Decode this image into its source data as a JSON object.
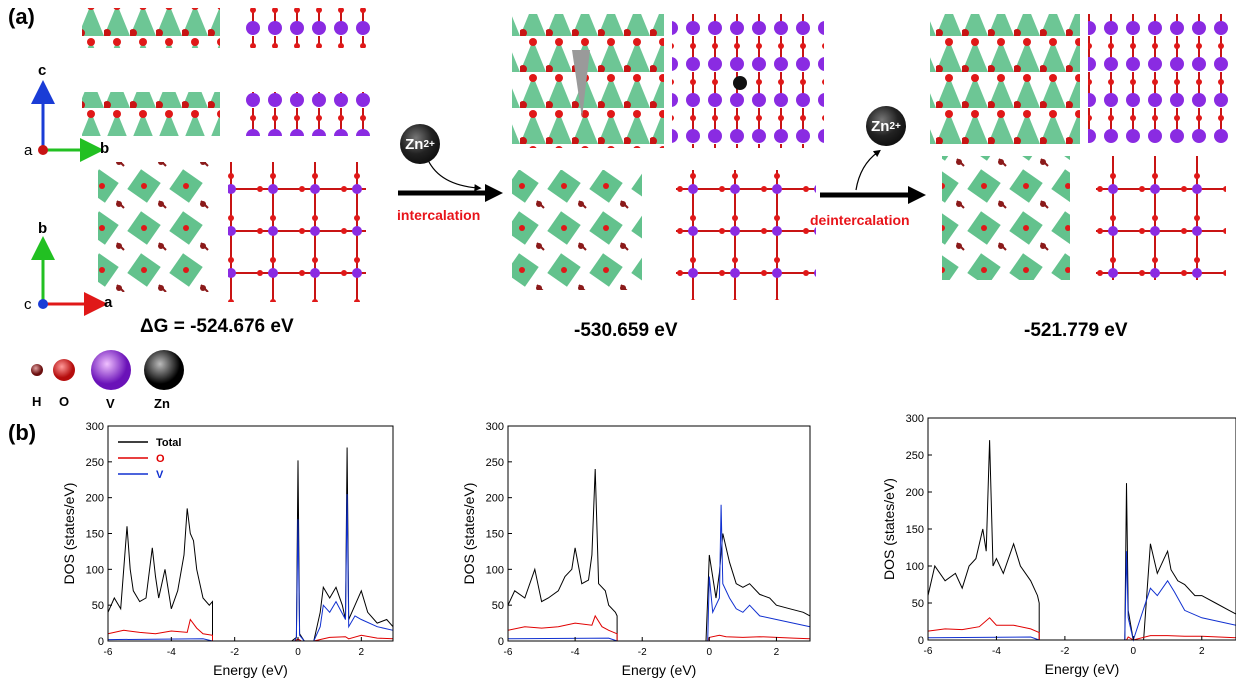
{
  "panels": {
    "a": "(a)",
    "b": "(b)"
  },
  "axes_indicator": {
    "top": {
      "c": "c",
      "a": "a",
      "b": "b"
    },
    "bottom": {
      "b": "b",
      "c": "c",
      "a": "a"
    }
  },
  "structures": [
    {
      "energy": "ΔG = -524.676 eV"
    },
    {
      "energy": "-530.659 eV"
    },
    {
      "energy": "-521.779 eV"
    }
  ],
  "process": {
    "intercalation": "intercalation",
    "deintercalation": "deintercalation",
    "ion_label": "Zn",
    "ion_charge": "2+"
  },
  "legend_atoms": [
    {
      "symbol": "H",
      "color": "#8b1a1a"
    },
    {
      "symbol": "O",
      "color": "#e01818"
    },
    {
      "symbol": "V",
      "color": "#8a2be2"
    },
    {
      "symbol": "Zn",
      "color": "#111111"
    }
  ],
  "colors": {
    "total": "#000000",
    "O": "#e00000",
    "V": "#1030d0",
    "octahedra": "#3cb371"
  },
  "chart_data": [
    {
      "type": "line",
      "xlabel": "Energy (eV)",
      "ylabel": "DOS (states/eV)",
      "xlim": [
        -6,
        3
      ],
      "ylim": [
        0,
        300
      ],
      "xticks": [
        -6,
        -4,
        -2,
        0,
        2
      ],
      "yticks": [
        0,
        50,
        100,
        150,
        200,
        250,
        300
      ],
      "legend": [
        "Total",
        "O",
        "V"
      ],
      "series": [
        {
          "name": "Total",
          "x": [
            -6,
            -5.8,
            -5.6,
            -5.4,
            -5.3,
            -5.2,
            -5.0,
            -4.8,
            -4.6,
            -4.5,
            -4.4,
            -4.2,
            -4.0,
            -3.8,
            -3.6,
            -3.5,
            -3.4,
            -3.3,
            -3.2,
            -3.0,
            -2.8,
            -2.7,
            -2.7,
            -0.2,
            -0.05,
            0,
            0.05,
            0.2,
            0.5,
            0.7,
            0.8,
            1.0,
            1.2,
            1.4,
            1.5,
            1.55,
            1.6,
            1.8,
            2.0,
            2.2,
            2.5,
            2.8,
            3
          ],
          "y": [
            40,
            60,
            45,
            160,
            100,
            70,
            55,
            60,
            130,
            90,
            60,
            100,
            45,
            70,
            120,
            185,
            150,
            140,
            100,
            60,
            50,
            55,
            0,
            0,
            5,
            252,
            10,
            0,
            0,
            40,
            75,
            60,
            75,
            50,
            30,
            270,
            30,
            50,
            70,
            40,
            25,
            30,
            20
          ]
        },
        {
          "name": "O",
          "x": [
            -6,
            -5.5,
            -5.0,
            -4.5,
            -4.0,
            -3.5,
            -3.4,
            -3.2,
            -3.0,
            -2.7,
            -2.7,
            -0.1,
            0,
            0.1,
            0.5,
            1.0,
            1.5,
            1.6,
            2.0,
            2.5,
            3
          ],
          "y": [
            10,
            15,
            12,
            10,
            14,
            12,
            30,
            18,
            10,
            8,
            0,
            0,
            3,
            0,
            0,
            5,
            6,
            3,
            8,
            4,
            3
          ]
        },
        {
          "name": "V",
          "x": [
            -6,
            -3,
            -2.7,
            -0.1,
            -0.05,
            0,
            0.05,
            0.2,
            0.5,
            0.7,
            0.8,
            1.0,
            1.2,
            1.5,
            1.55,
            1.6,
            1.8,
            2.0,
            2.5,
            3
          ],
          "y": [
            2,
            3,
            0,
            0,
            5,
            170,
            8,
            0,
            0,
            20,
            50,
            40,
            55,
            30,
            205,
            20,
            35,
            30,
            20,
            15
          ]
        }
      ]
    },
    {
      "type": "line",
      "xlabel": "Energy (eV)",
      "ylabel": "DOS (states/eV)",
      "xlim": [
        -6,
        3
      ],
      "ylim": [
        0,
        300
      ],
      "xticks": [
        -6,
        -4,
        -2,
        0,
        2
      ],
      "yticks": [
        0,
        50,
        100,
        150,
        200,
        250,
        300
      ],
      "series": [
        {
          "name": "Total",
          "x": [
            -6,
            -5.8,
            -5.5,
            -5.2,
            -5.0,
            -4.8,
            -4.5,
            -4.3,
            -4.1,
            -4.0,
            -3.8,
            -3.6,
            -3.5,
            -3.4,
            -3.3,
            -3.1,
            -3.0,
            -2.8,
            -2.75,
            -2.75,
            -0.1,
            -0.05,
            0,
            0.2,
            0.3,
            0.4,
            0.6,
            0.8,
            1.0,
            1.2,
            1.5,
            1.8,
            2.0,
            2.4,
            2.8,
            3
          ],
          "y": [
            50,
            70,
            60,
            100,
            55,
            60,
            70,
            90,
            100,
            130,
            80,
            85,
            120,
            240,
            80,
            70,
            50,
            40,
            35,
            0,
            0,
            60,
            120,
            60,
            95,
            150,
            110,
            80,
            75,
            80,
            65,
            60,
            50,
            45,
            40,
            35
          ]
        },
        {
          "name": "O",
          "x": [
            -6,
            -5.5,
            -5.0,
            -4.5,
            -4.0,
            -3.5,
            -3.4,
            -3.2,
            -3.0,
            -2.75,
            -2.75,
            -0.05,
            0,
            0.3,
            0.5,
            1.0,
            1.5,
            2.0,
            2.5,
            3
          ],
          "y": [
            15,
            20,
            18,
            20,
            25,
            22,
            35,
            20,
            15,
            10,
            0,
            0,
            5,
            8,
            6,
            5,
            6,
            5,
            4,
            3
          ]
        },
        {
          "name": "V",
          "x": [
            -6,
            -3,
            -2.75,
            -0.05,
            0,
            0.1,
            0.3,
            0.35,
            0.4,
            0.6,
            0.8,
            1.0,
            1.2,
            1.5,
            2.0,
            2.5,
            3
          ],
          "y": [
            3,
            4,
            0,
            0,
            90,
            40,
            60,
            190,
            80,
            60,
            45,
            40,
            50,
            35,
            30,
            25,
            20
          ]
        }
      ]
    },
    {
      "type": "line",
      "xlabel": "Energy (eV)",
      "ylabel": "DOS (states/eV)",
      "xlim": [
        -6,
        3
      ],
      "ylim": [
        0,
        300
      ],
      "xticks": [
        -6,
        -4,
        -2,
        0,
        2
      ],
      "yticks": [
        0,
        50,
        100,
        150,
        200,
        250,
        300
      ],
      "series": [
        {
          "name": "Total",
          "x": [
            -6,
            -5.8,
            -5.5,
            -5.2,
            -5.0,
            -4.8,
            -4.6,
            -4.4,
            -4.3,
            -4.2,
            -4.1,
            -4.0,
            -3.8,
            -3.5,
            -3.3,
            -3.0,
            -2.8,
            -2.75,
            -2.75,
            -0.25,
            -0.2,
            -0.15,
            0,
            0.3,
            0.5,
            0.7,
            0.9,
            1.0,
            1.1,
            1.3,
            1.5,
            1.8,
            2.0,
            2.4,
            2.8,
            3
          ],
          "y": [
            60,
            100,
            80,
            90,
            70,
            100,
            110,
            150,
            120,
            270,
            100,
            110,
            90,
            130,
            100,
            80,
            60,
            50,
            0,
            0,
            212,
            40,
            0,
            0,
            130,
            90,
            110,
            120,
            95,
            80,
            75,
            60,
            60,
            50,
            40,
            35
          ]
        },
        {
          "name": "O",
          "x": [
            -6,
            -5.5,
            -5.0,
            -4.5,
            -4.2,
            -4.0,
            -3.5,
            -3.0,
            -2.75,
            -2.75,
            -0.2,
            -0.15,
            0,
            0.5,
            1.0,
            1.5,
            2.0,
            2.5,
            3
          ],
          "y": [
            12,
            15,
            14,
            18,
            30,
            20,
            20,
            15,
            10,
            0,
            0,
            4,
            0,
            6,
            6,
            5,
            5,
            4,
            3
          ]
        },
        {
          "name": "V",
          "x": [
            -6,
            -3,
            -2.75,
            -0.25,
            -0.2,
            -0.15,
            0,
            0.5,
            0.7,
            1.0,
            1.2,
            1.5,
            2.0,
            2.5,
            3
          ],
          "y": [
            3,
            4,
            0,
            0,
            120,
            30,
            0,
            70,
            60,
            80,
            65,
            40,
            30,
            25,
            20
          ]
        }
      ]
    }
  ]
}
